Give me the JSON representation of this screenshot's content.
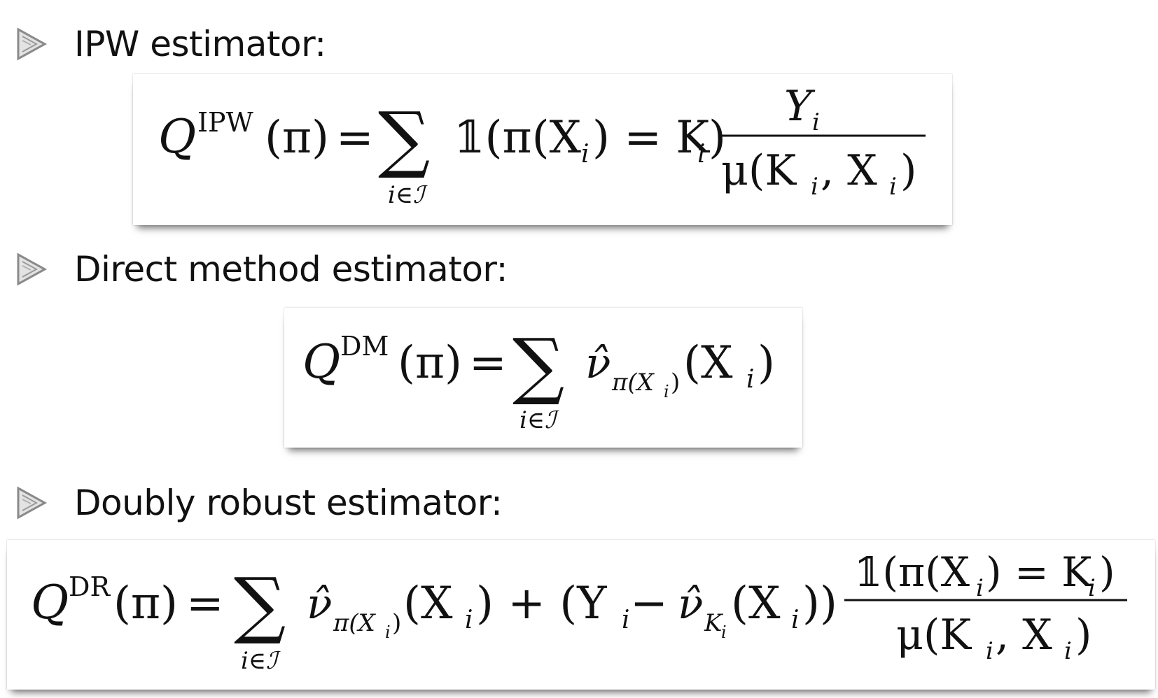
{
  "items": [
    {
      "heading": "IPW estimator:",
      "bullet_icon": "triangle-bullet-icon",
      "formula": {
        "Q": "Q",
        "superscript": "IPW",
        "arg": "(π)",
        "eq": "=",
        "sum": "∑",
        "sum_sub": "i∈ℐ",
        "indicator": "𝟙(π(X",
        "indicator_sub": "i",
        "indicator_mid": ") = K",
        "indicator_sub2": "i",
        "indicator_end": ")",
        "num": "Y",
        "num_sub": "i",
        "den_a": "μ(K",
        "den_sub1": "i",
        "den_b": ", X",
        "den_sub2": "i",
        "den_c": ")"
      }
    },
    {
      "heading": "Direct method estimator:",
      "bullet_icon": "triangle-bullet-icon",
      "formula": {
        "Q": "Q",
        "superscript": "DM",
        "arg": "(π)",
        "eq": "=",
        "sum": "∑",
        "sum_sub": "i∈ℐ",
        "nu": "ν̂",
        "nu_sub": "π(X",
        "nu_subsub": "i",
        "nu_sub_end": ")",
        "tail": "(X",
        "tail_sub": "i",
        "tail_end": ")"
      }
    },
    {
      "heading": "Doubly robust estimator:",
      "bullet_icon": "triangle-bullet-icon",
      "formula": {
        "Q": "Q",
        "superscript": "DR",
        "arg": "(π)",
        "eq": "=",
        "sum": "∑",
        "sum_sub": "i∈ℐ",
        "nu": "ν̂",
        "nu_sub": "π(X",
        "nu_subsub": "i",
        "nu_sub_end": ")",
        "t1": "(X",
        "t1_sub": "i",
        "t1_end": ") + (Y",
        "t2_sub": "i",
        "t2_mid": " − ",
        "nu2": "ν̂",
        "nu2_sub": "K",
        "nu2_subsub": "i",
        "t3": "(X",
        "t3_sub": "i",
        "t3_end": "))",
        "num": "𝟙(π(X",
        "num_sub": "i",
        "num_mid": ") = K",
        "num_sub2": "i",
        "num_end": ")",
        "den_a": "μ(K",
        "den_sub1": "i",
        "den_b": ", X",
        "den_sub2": "i",
        "den_c": ")"
      }
    }
  ],
  "colors": {
    "text": "#111111",
    "bullet_fill": "#d9d9d9",
    "bullet_stroke": "#8a8a8a",
    "box_bg": "#ffffff"
  }
}
